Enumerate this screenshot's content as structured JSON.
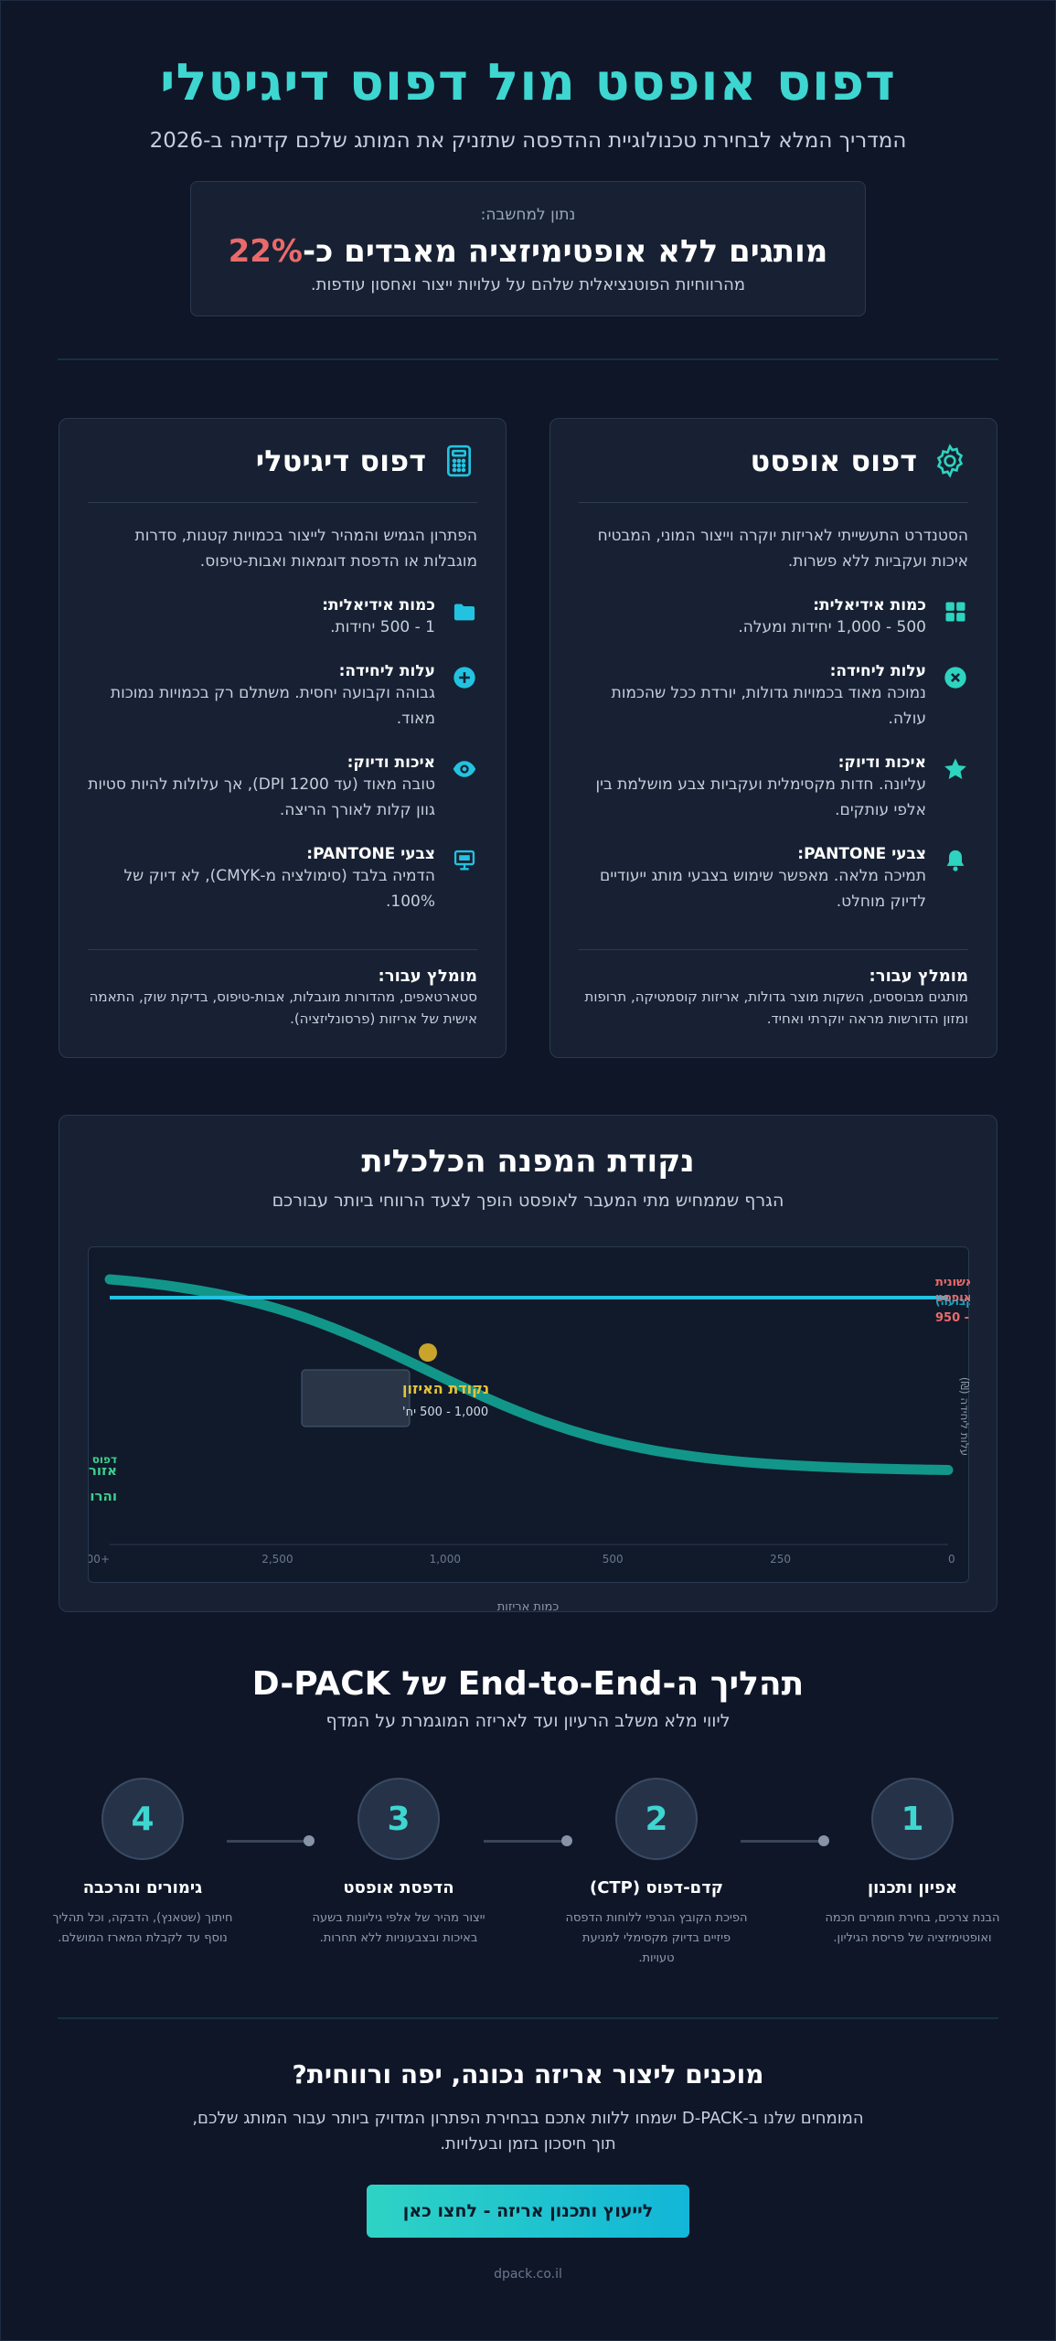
{
  "hero": {
    "title": "דפוס אופסט מול דפוס דיגיטלי",
    "subtitle": "המדריך המלא לבחירת טכנולוגיית ההדפסה שתזניק את המותג שלכם קדימה ב-2026"
  },
  "stat": {
    "label": "נתון למחשבה:",
    "headline": "מותגים ללא אופטימיזציה מאבדים כ-",
    "percent": "22%",
    "sub": "מהרווחיות הפוטנציאלית שלהם על עלויות ייצור ואחסון עודפות."
  },
  "offset_card": {
    "title": "דפוס אופסט",
    "icon": "gear-icon",
    "description": "הסטנדרט התעשייתי לאריזות יוקרה וייצור המוני, המבטיח איכות ועקביות ללא פשרות.",
    "features": [
      {
        "icon": "grid-icon",
        "title": "כמות אידיאלית:",
        "text": "500 - 1,000 יחידות ומעלה."
      },
      {
        "icon": "coin-icon",
        "title": "עלות ליחידה:",
        "text": "נמוכה מאוד בכמויות גדולות, יורדת ככל שהכמות עולה."
      },
      {
        "icon": "star-icon",
        "title": "איכות ודיוק:",
        "text": "עליונה. חדות מקסימלית ועקביות צבע מושלמת בין אלפי עותקים."
      },
      {
        "icon": "bell-icon",
        "title": "צבעי PANTONE:",
        "text": "תמיכה מלאה. מאפשר שימוש בצבעי מותג ייעודיים לדיוק מוחלט."
      }
    ],
    "rec_title": "מומלץ עבור:",
    "rec_text": "מותגים מבוססים, השקות מוצר גדולות, אריזות קוסמטיקה, תרופות ומזון הדורשות מראה יוקרתי ואחיד."
  },
  "digital_card": {
    "title": "דפוס דיגיטלי",
    "icon": "calculator-icon",
    "description": "הפתרון הגמיש והמהיר לייצור בכמויות קטנות, סדרות מוגבלות או הדפסת דוגמאות ואבות-טיפוס.",
    "features": [
      {
        "icon": "folder-icon",
        "title": "כמות אידיאלית:",
        "text": "1 - 500 יחידות."
      },
      {
        "icon": "plus-circle-icon",
        "title": "עלות ליחידה:",
        "text": "גבוהה וקבועה יחסית. משתלם רק בכמויות נמוכות מאוד."
      },
      {
        "icon": "eye-icon",
        "title": "איכות ודיוק:",
        "text": "טובה מאוד (עד 1200 DPI), אך עלולות להיות סטיות גוון קלות לאורך הריצה."
      },
      {
        "icon": "monitor-icon",
        "title": "צבעי PANTONE:",
        "text": "הדמיה בלבד (סימולציה מ-CMYK), לא דיוק של 100%."
      }
    ],
    "rec_title": "מומלץ עבור:",
    "rec_text": "סטארטאפים, מהדורות מוגבלות, אבות-טיפוס, בדיקת שוק, התאמה אישית של אריזות (פרסונליזציה)."
  },
  "chart_section": {
    "title": "נקודת המפנה הכלכלית",
    "subtitle": "הגרף שממחיש מתי המעבר לאופסט הופך לצעד הרווחי ביותר עבורכם",
    "x_axis_label": "כמות אריזות",
    "y_axis_label": "עלות ליחידה (₪)",
    "label_digital": "דפוס דיגיטלי (עלות קבועה)",
    "label_offset": "דפוס אופסט (עלות יורדת)",
    "label_setup_1": "השקעה ראשונית",
    "label_setup_2": "בלוחות אופסט",
    "label_setup_3": "₪ 2,900 - 950",
    "label_savings_1": "אזור החיסכון",
    "label_savings_2": "והרווחיות המוגברת",
    "balance_title": "נקודת האיזון",
    "balance_text": "1,000 - 500 יח'",
    "colors": {
      "digital": "#22c3e0",
      "offset": "#12968a",
      "balance": "#c8a52a",
      "savings": "#3ecf8e",
      "setup": "#ea6a6a"
    }
  },
  "chart_data": {
    "type": "line",
    "x": [
      0,
      250,
      500,
      1000,
      2500,
      5000
    ],
    "x_ticks": [
      "0",
      "250",
      "500",
      "1,000",
      "2,500",
      "+5,000"
    ],
    "series": [
      {
        "name": "דפוס דיגיטלי (עלות קבועה)",
        "values": [
          0.9,
          0.9,
          0.9,
          0.9,
          0.9,
          0.9
        ]
      },
      {
        "name": "דפוס אופסט (עלות יורדת)",
        "values": [
          0.05,
          0.1,
          0.25,
          0.5,
          0.85,
          1.0
        ]
      }
    ],
    "balance_point": {
      "x": 750,
      "label": "נקודת האיזון"
    },
    "xlabel": "כמות אריזות",
    "ylabel": "עלות ליחידה (₪)",
    "x_reversed": true
  },
  "process": {
    "title": "תהליך ה-End-to-End של D-PACK",
    "subtitle": "ליווי מלא משלב הרעיון ועד לאריזה המוגמרת על המדף",
    "steps": [
      {
        "num": "1",
        "title": "אפיון ותכנון",
        "text": "הבנת צרכים, בחירת חומרים חכמה ואופטימיזציה של פריסת הגיליון."
      },
      {
        "num": "2",
        "title": "קדם-דפוס (CTP)",
        "text": "הפיכת הקובץ הגרפי ללוחות הדפסה פיזיים בדיוק מקסימלי למניעת טעויות."
      },
      {
        "num": "3",
        "title": "הדפסת אופסט",
        "text": "ייצור מהיר של אלפי גיליונות בשעה באיכות ובצבעוניות ללא תחרות."
      },
      {
        "num": "4",
        "title": "גימורים והרכבה",
        "text": "חיתוך (שטאנץ), הדבקה, וכל תהליך נוסף עד לקבלת המארז המושלם."
      }
    ]
  },
  "cta": {
    "title": "מוכנים ליצור אריזה נכונה, יפה ורווחית?",
    "text": "המומחים שלנו ב-D-PACK ישמחו ללוות אתכם בבחירת הפתרון המדויק ביותר עבור המותג שלכם, תוך חיסכון בזמן ובעלויות.",
    "button": "לייעוץ ותכנון אריזה - לחצו כאן"
  },
  "footer": {
    "site": "dpack.co.il"
  }
}
